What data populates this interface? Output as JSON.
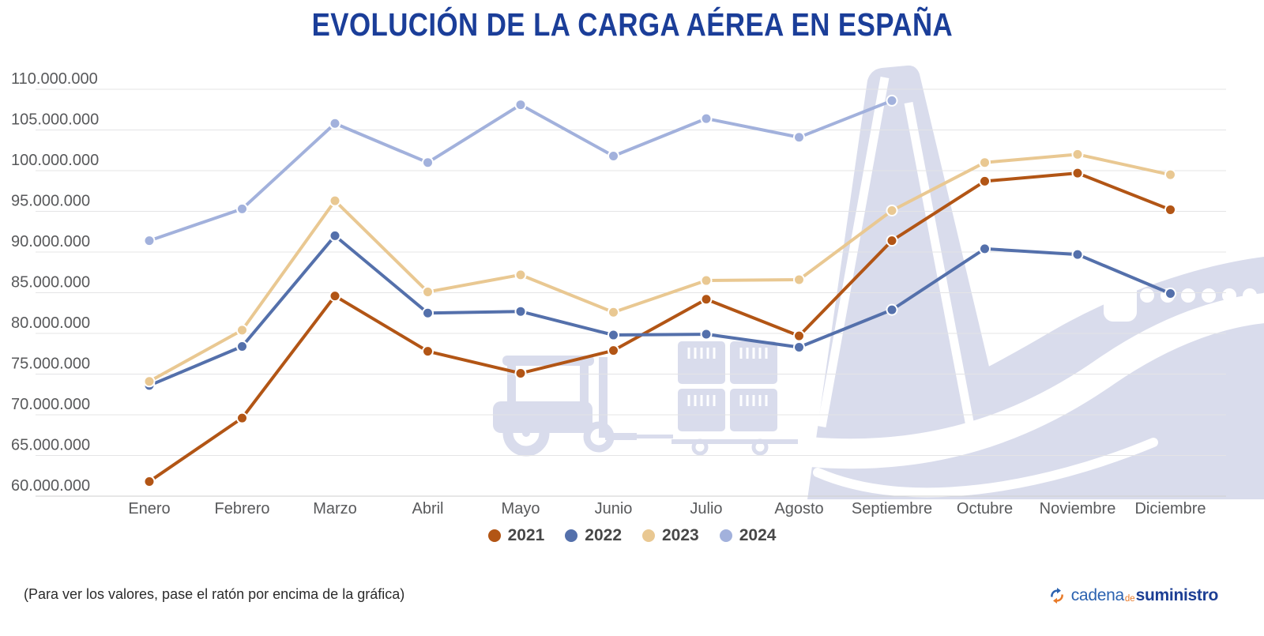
{
  "page": {
    "title": "EVOLUCIÓN DE LA CARGA AÉREA EN ESPAÑA",
    "footnote": "(Para ver los valores, pase el ratón por encima de la gráfica)"
  },
  "logo": {
    "word1": "cadena",
    "word2": "de",
    "word3": "suministro",
    "blue": "#2b62b0",
    "dark_blue": "#1c3e94",
    "orange": "#e87b2a"
  },
  "colors": {
    "title": "#1b3e99",
    "gridline": "#e4e4e6",
    "axis_text": "#58595b",
    "watermark": "#d9dcec"
  },
  "chart_data": {
    "type": "line",
    "title": "EVOLUCIÓN DE LA CARGA AÉREA EN ESPAÑA",
    "categories": [
      "Enero",
      "Febrero",
      "Marzo",
      "Abril",
      "Mayo",
      "Junio",
      "Julio",
      "Agosto",
      "Septiembre",
      "Octubre",
      "Noviembre",
      "Diciembre"
    ],
    "y_ticks": [
      "110.000.000",
      "105.000.000",
      "100.000.000",
      "95.000.000",
      "90.000.000",
      "85.000.000",
      "80.000.000",
      "75.000.000",
      "70.000.000",
      "65.000.000",
      "60.000.000"
    ],
    "ylim": [
      60000000,
      110000000
    ],
    "y_tick_step": 5000000,
    "grid": true,
    "legend_position": "bottom",
    "series": [
      {
        "name": "2021",
        "color": "#b25515",
        "values": [
          61800000,
          69600000,
          84600000,
          77800000,
          75100000,
          77900000,
          84200000,
          79700000,
          91400000,
          98700000,
          99700000,
          95200000
        ]
      },
      {
        "name": "2022",
        "color": "#5470ab",
        "values": [
          73600000,
          78400000,
          92000000,
          82500000,
          82700000,
          79800000,
          79900000,
          78300000,
          82900000,
          90400000,
          89700000,
          84900000
        ]
      },
      {
        "name": "2023",
        "color": "#e9c892",
        "values": [
          74100000,
          80400000,
          96300000,
          85100000,
          87200000,
          82600000,
          86500000,
          86600000,
          95100000,
          101000000,
          102000000,
          99500000
        ]
      },
      {
        "name": "2024",
        "color": "#a2b1dc",
        "values": [
          91400000,
          95300000,
          105800000,
          101000000,
          108100000,
          101800000,
          106400000,
          104100000,
          108600000,
          null,
          null,
          null
        ]
      }
    ],
    "watermarks": [
      "forklift-icon",
      "pallet-boxes-icon",
      "airplane-icon"
    ]
  }
}
